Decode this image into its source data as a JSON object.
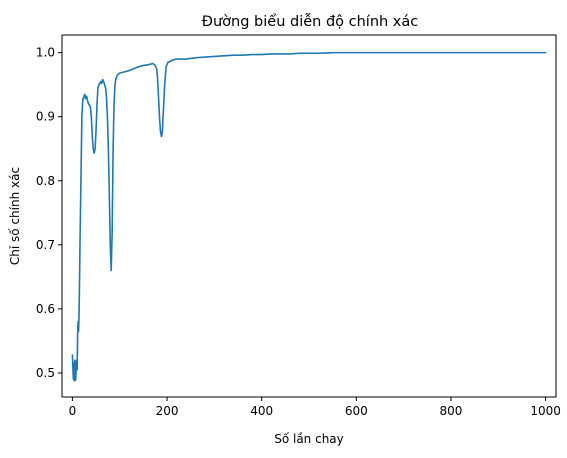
{
  "chart_data": {
    "type": "line",
    "title": "Đường biểu diễn độ chính xác",
    "xlabel": "Số lần chay",
    "ylabel": "Chỉ số chính xác",
    "xlim": [
      -22,
      1022
    ],
    "ylim": [
      0.4625,
      1.0275
    ],
    "xticks": [
      0,
      200,
      400,
      600,
      800,
      1000
    ],
    "yticks": [
      0.5,
      0.6,
      0.7,
      0.8,
      0.9,
      1.0
    ],
    "ytick_labels": [
      "0.5",
      "0.6",
      "0.7",
      "0.8",
      "0.9",
      "1.0"
    ],
    "grid": false,
    "colors": {
      "series": "#1f77b4"
    },
    "series": [
      {
        "x": [
          0,
          2,
          3,
          4,
          5,
          6,
          7,
          8,
          9,
          10,
          11,
          12,
          13,
          14,
          15,
          16,
          18,
          20,
          22,
          24,
          26,
          28,
          30,
          32,
          34,
          36,
          38,
          40,
          42,
          44,
          46,
          48,
          50,
          52,
          54,
          56,
          58,
          60,
          62,
          64,
          66,
          68,
          70,
          72,
          74,
          76,
          78,
          80,
          82,
          84,
          86,
          88,
          90,
          92,
          95,
          100,
          110,
          120,
          130,
          140,
          150,
          160,
          170,
          175,
          178,
          180,
          182,
          184,
          186,
          188,
          190,
          192,
          195,
          198,
          202,
          206,
          210,
          220,
          240,
          260,
          280,
          300,
          320,
          340,
          360,
          380,
          400,
          420,
          440,
          460,
          480,
          500,
          520,
          540,
          555,
          600,
          700,
          800,
          900,
          1000
        ],
        "y": [
          0.528,
          0.49,
          0.515,
          0.488,
          0.52,
          0.488,
          0.49,
          0.515,
          0.52,
          0.505,
          0.56,
          0.58,
          0.565,
          0.59,
          0.64,
          0.7,
          0.8,
          0.9,
          0.928,
          0.93,
          0.935,
          0.928,
          0.932,
          0.925,
          0.92,
          0.918,
          0.915,
          0.9,
          0.87,
          0.85,
          0.843,
          0.85,
          0.88,
          0.92,
          0.945,
          0.95,
          0.952,
          0.955,
          0.952,
          0.958,
          0.955,
          0.95,
          0.945,
          0.93,
          0.9,
          0.85,
          0.78,
          0.7,
          0.66,
          0.72,
          0.85,
          0.92,
          0.95,
          0.96,
          0.965,
          0.968,
          0.97,
          0.972,
          0.975,
          0.978,
          0.98,
          0.981,
          0.983,
          0.98,
          0.975,
          0.96,
          0.93,
          0.9,
          0.878,
          0.869,
          0.875,
          0.905,
          0.95,
          0.978,
          0.985,
          0.986,
          0.988,
          0.99,
          0.99,
          0.992,
          0.993,
          0.994,
          0.995,
          0.996,
          0.996,
          0.997,
          0.997,
          0.998,
          0.998,
          0.998,
          0.999,
          0.999,
          0.999,
          0.9995,
          1.0,
          1.0,
          1.0,
          1.0,
          1.0,
          1.0
        ]
      }
    ]
  }
}
